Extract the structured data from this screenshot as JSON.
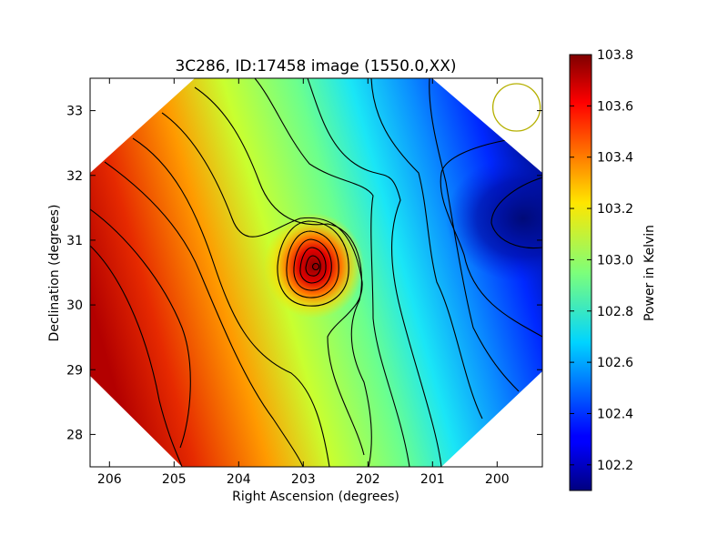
{
  "chart_data": {
    "type": "heatmap",
    "title": "3C286, ID:17458 image (1550.0,XX)",
    "xlabel": "Right Ascension (degrees)",
    "ylabel": "Declination (degrees)",
    "xlim": [
      206.3,
      199.3
    ],
    "ylim": [
      27.5,
      33.5
    ],
    "x_ticks": [
      "206",
      "205",
      "204",
      "203",
      "202",
      "201",
      "200"
    ],
    "y_ticks": [
      "28",
      "29",
      "30",
      "31",
      "32",
      "33"
    ],
    "colorbar": {
      "label": "Power in Kelvin",
      "range": [
        102.1,
        103.8
      ],
      "ticks": [
        "102.2",
        "102.4",
        "102.6",
        "102.8",
        "103.0",
        "103.2",
        "103.4",
        "103.6",
        "103.8"
      ],
      "colormap": "jet"
    },
    "grid": false,
    "source_peak": {
      "ra": 202.75,
      "dec": 30.6,
      "value": 103.8
    },
    "field_min": {
      "ra": 199.5,
      "dec": 31.3,
      "value": 102.1
    },
    "beam_marker": {
      "ra": 199.7,
      "dec": 33.05,
      "color": "#b5b000"
    }
  }
}
